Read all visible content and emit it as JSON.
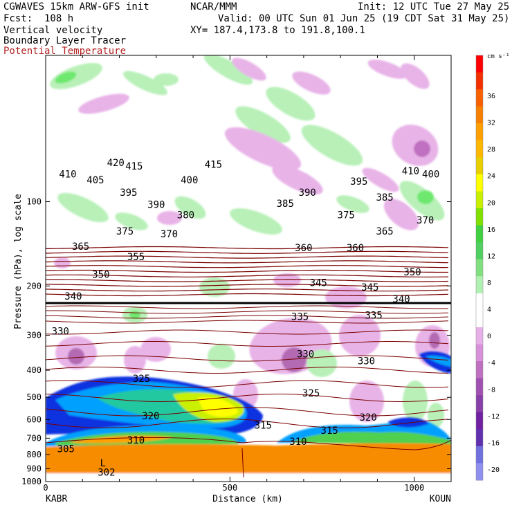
{
  "header": {
    "model": "CGWAVES 15km ARW-GFS init",
    "org": "NCAR/MMM",
    "init": "Init: 12 UTC Tue 27 May 25",
    "fcst": "Fcst:  108 h",
    "valid": "Valid: 00 UTC Sun 01 Jun 25 (19 CDT Sat 31 May 25)",
    "field1": "Vertical velocity",
    "field2": "Boundary Layer Tracer",
    "field3": "Potential Temperature",
    "xy": "XY= 187.4,173.8 to 191.8,100.1"
  },
  "colors": {
    "theta": "#7a0000",
    "field3_text": "#b22222"
  },
  "chart_data": {
    "type": "heatmap",
    "title": "",
    "xlabel": "Distance (km)",
    "ylabel": "Pressure (hPa), log scale",
    "xlim": [
      0,
      1100
    ],
    "ylim": [
      1000,
      30
    ],
    "yscale": "log",
    "x_ticks": [
      0,
      500,
      1000
    ],
    "y_ticks": [
      100,
      200,
      300,
      400,
      500,
      600,
      700,
      800,
      900,
      1000
    ],
    "endpoints": {
      "left": "KABR",
      "right": "KOUN"
    },
    "colorbar": {
      "units": "cm s⁻¹",
      "labels": [
        36,
        32,
        28,
        24,
        20,
        16,
        12,
        8,
        4,
        0,
        -4,
        -8,
        -12,
        -16,
        -20
      ],
      "colors": [
        "#ff0000",
        "#f53000",
        "#f86000",
        "#f88000",
        "#ffa000",
        "#ffb800",
        "#e8d000",
        "#ffff00",
        "#c8f000",
        "#80e000",
        "#40d040",
        "#50d060",
        "#80e080",
        "#b0f0b0",
        "#ffffff",
        "#ffffff",
        "#e8b0e8",
        "#d890d8",
        "#c070c0",
        "#a050b0",
        "#8840a8",
        "#7020a0",
        "#6030b0",
        "#7070e0",
        "#9090f0"
      ]
    },
    "theta_labels": [
      {
        "v": "420",
        "x": 190,
        "p": 73
      },
      {
        "v": "415",
        "x": 240,
        "p": 75
      },
      {
        "v": "415",
        "x": 455,
        "p": 74
      },
      {
        "v": "410",
        "x": 60,
        "p": 80
      },
      {
        "v": "410",
        "x": 990,
        "p": 78
      },
      {
        "v": "405",
        "x": 135,
        "p": 84
      },
      {
        "v": "400",
        "x": 390,
        "p": 84
      },
      {
        "v": "400",
        "x": 1045,
        "p": 80
      },
      {
        "v": "395",
        "x": 225,
        "p": 93
      },
      {
        "v": "395",
        "x": 850,
        "p": 85
      },
      {
        "v": "390",
        "x": 300,
        "p": 103
      },
      {
        "v": "390",
        "x": 710,
        "p": 93
      },
      {
        "v": "385",
        "x": 650,
        "p": 102
      },
      {
        "v": "385",
        "x": 920,
        "p": 97
      },
      {
        "v": "380",
        "x": 380,
        "p": 112
      },
      {
        "v": "375",
        "x": 215,
        "p": 128
      },
      {
        "v": "375",
        "x": 815,
        "p": 112
      },
      {
        "v": "370",
        "x": 335,
        "p": 131
      },
      {
        "v": "370",
        "x": 1030,
        "p": 117
      },
      {
        "v": "365",
        "x": 95,
        "p": 145
      },
      {
        "v": "365",
        "x": 920,
        "p": 128
      },
      {
        "v": "360",
        "x": 700,
        "p": 147
      },
      {
        "v": "360",
        "x": 840,
        "p": 147
      },
      {
        "v": "355",
        "x": 245,
        "p": 158
      },
      {
        "v": "350",
        "x": 150,
        "p": 183
      },
      {
        "v": "350",
        "x": 995,
        "p": 179
      },
      {
        "v": "345",
        "x": 740,
        "p": 196
      },
      {
        "v": "345",
        "x": 880,
        "p": 203
      },
      {
        "v": "340",
        "x": 75,
        "p": 219
      },
      {
        "v": "340",
        "x": 965,
        "p": 224
      },
      {
        "v": "335",
        "x": 690,
        "p": 259
      },
      {
        "v": "335",
        "x": 890,
        "p": 256
      },
      {
        "v": "330",
        "x": 40,
        "p": 292
      },
      {
        "v": "330",
        "x": 705,
        "p": 352
      },
      {
        "v": "330",
        "x": 870,
        "p": 372
      },
      {
        "v": "325",
        "x": 260,
        "p": 431
      },
      {
        "v": "325",
        "x": 720,
        "p": 486
      },
      {
        "v": "320",
        "x": 285,
        "p": 586
      },
      {
        "v": "320",
        "x": 875,
        "p": 592
      },
      {
        "v": "315",
        "x": 590,
        "p": 632
      },
      {
        "v": "315",
        "x": 770,
        "p": 660
      },
      {
        "v": "310",
        "x": 245,
        "p": 714
      },
      {
        "v": "310",
        "x": 685,
        "p": 723
      },
      {
        "v": "305",
        "x": 55,
        "p": 768
      }
    ],
    "low_label": {
      "v": "302",
      "x": 165,
      "p": 965,
      "mark": "L",
      "markp": 862
    }
  }
}
